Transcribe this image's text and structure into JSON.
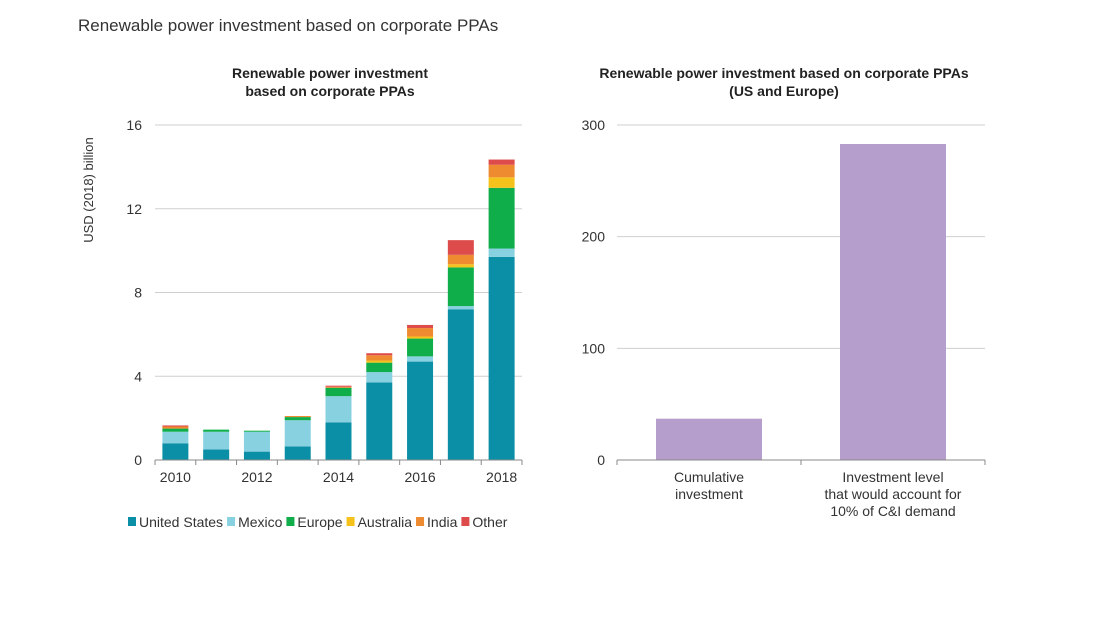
{
  "page": {
    "title": "Renewable power investment based on corporate PPAs"
  },
  "colors": {
    "United States": "#0b8fa6",
    "Mexico": "#88d1e0",
    "Europe": "#0fae4a",
    "Australia": "#f5c21b",
    "India": "#ee8a2f",
    "Other": "#de4b4b",
    "right_bars": "#b59dcc",
    "grid": "#cfcfcf",
    "axis": "#888888"
  },
  "chart_data": [
    {
      "type": "bar",
      "stacked": true,
      "title_lines": [
        "Renewable power investment",
        "based on corporate PPAs"
      ],
      "ylabel": "USD (2018) billion",
      "xlabel": "",
      "ylim": [
        0,
        16
      ],
      "yticks": [
        0,
        4,
        8,
        12,
        16
      ],
      "categories": [
        "2010",
        "2011",
        "2012",
        "2013",
        "2014",
        "2015",
        "2016",
        "2017",
        "2018"
      ],
      "xtick_labels": [
        "2010",
        "",
        "2012",
        "",
        "2014",
        "",
        "2016",
        "",
        "2018"
      ],
      "series": [
        {
          "name": "United States",
          "values": [
            0.8,
            0.5,
            0.4,
            0.65,
            1.8,
            3.7,
            4.7,
            7.2,
            9.7
          ]
        },
        {
          "name": "Mexico",
          "values": [
            0.55,
            0.85,
            0.95,
            1.25,
            1.25,
            0.5,
            0.25,
            0.15,
            0.4
          ]
        },
        {
          "name": "Europe",
          "values": [
            0.15,
            0.1,
            0.05,
            0.15,
            0.4,
            0.45,
            0.85,
            1.85,
            2.9
          ]
        },
        {
          "name": "Australia",
          "values": [
            0,
            0,
            0,
            0,
            0,
            0.1,
            0.1,
            0.15,
            0.5
          ]
        },
        {
          "name": "India",
          "values": [
            0.1,
            0,
            0,
            0.05,
            0.05,
            0.25,
            0.4,
            0.45,
            0.6
          ]
        },
        {
          "name": "Other",
          "values": [
            0.05,
            0,
            0,
            0,
            0.05,
            0.1,
            0.15,
            0.7,
            0.25
          ]
        }
      ],
      "legend": [
        "United States",
        "Mexico",
        "Europe",
        "Australia",
        "India",
        "Other"
      ],
      "legend_position": "bottom"
    },
    {
      "type": "bar",
      "stacked": false,
      "title_lines": [
        "Renewable power investment based on corporate PPAs",
        "(US and Europe)"
      ],
      "ylabel": "",
      "xlabel": "",
      "ylim": [
        0,
        300
      ],
      "yticks": [
        0,
        100,
        200,
        300
      ],
      "categories": [
        "Cumulative investment",
        "Investment level that would account for 10% of C&I demand"
      ],
      "category_lines": [
        [
          "Cumulative",
          "investment"
        ],
        [
          "Investment level",
          "that would account for",
          "10% of C&I demand"
        ]
      ],
      "values": [
        37,
        283
      ]
    }
  ]
}
